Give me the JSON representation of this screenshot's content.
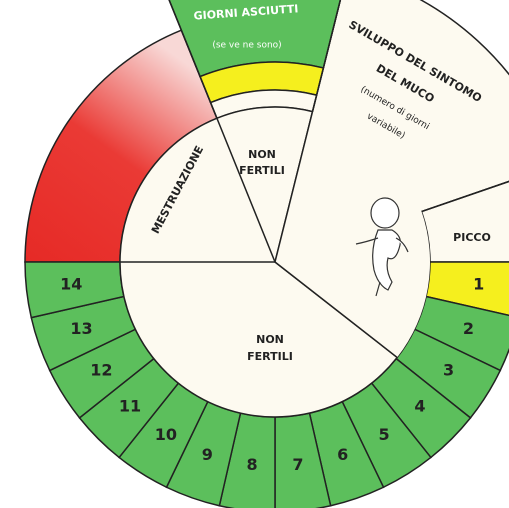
{
  "segments": {
    "menstruation": "MESTRUAZIONE",
    "dry_days": {
      "title": "GIORNI ASCIUTTI",
      "note": "(se ve ne sono)"
    },
    "infertile_top": [
      "NON",
      "FERTILI"
    ],
    "mucus": {
      "title": [
        "SVILUPPO DEL SINTOMO",
        "DEL MUCO"
      ],
      "note": [
        "(numero di giorni",
        "variabile)"
      ]
    },
    "peak": "PICCO",
    "infertile_bottom": [
      "NON",
      "FERTILI"
    ]
  },
  "days": [
    1,
    2,
    3,
    4,
    5,
    6,
    7,
    8,
    9,
    10,
    11,
    12,
    13,
    14
  ]
}
